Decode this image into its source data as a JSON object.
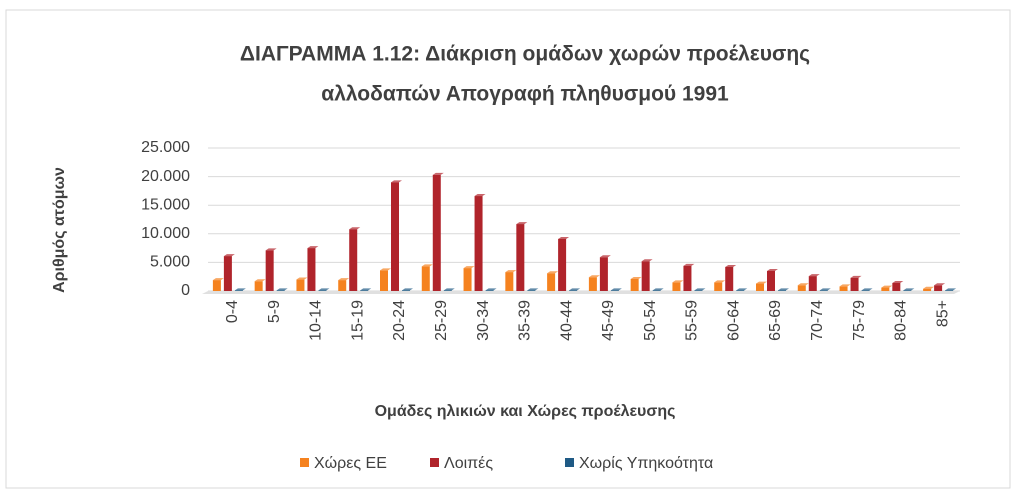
{
  "chart_data": {
    "type": "bar",
    "title": [
      "ΔΙΑΓΡΑΜΜΑ 1.12: Διάκριση ομάδων χωρών προέλευσης",
      "αλλοδαπών Απογραφή πληθυσμού 1991"
    ],
    "x_label": "Ομάδες ηλικιών και Χώρες προέλευσης",
    "y_label": "Αριθμός ατόμων",
    "categories": [
      "0-4",
      "5-9",
      "10-14",
      "15-19",
      "20-24",
      "25-29",
      "30-34",
      "35-39",
      "40-44",
      "45-49",
      "50-54",
      "55-59",
      "60-64",
      "65-69",
      "70-74",
      "75-79",
      "80-84",
      "85+"
    ],
    "series": [
      {
        "name": "Χώρες ΕΕ",
        "color": "#f5821f",
        "values": [
          1900,
          1700,
          2000,
          1900,
          3600,
          4300,
          4000,
          3300,
          3100,
          2400,
          2100,
          1500,
          1500,
          1300,
          1000,
          800,
          600,
          400
        ]
      },
      {
        "name": "Λοιπές",
        "color": "#b0242b",
        "values": [
          6100,
          7100,
          7500,
          10800,
          19000,
          20300,
          16600,
          11700,
          9100,
          5900,
          5200,
          4400,
          4200,
          3500,
          2600,
          2300,
          1400,
          1000
        ]
      },
      {
        "name": "Χωρίς Υπηκοότητα",
        "color": "#1f5a85",
        "values": [
          100,
          100,
          100,
          100,
          100,
          100,
          100,
          100,
          100,
          100,
          100,
          100,
          100,
          100,
          100,
          100,
          100,
          100
        ]
      }
    ],
    "ylim": [
      0,
      25000
    ],
    "yticks": [
      0,
      {
        "value": 5000,
        "label": "5.000"
      },
      {
        "value": 10000,
        "label": "10.000"
      },
      {
        "value": 15000,
        "label": "15.000"
      },
      {
        "value": 20000,
        "label": "20.000"
      },
      {
        "value": 25000,
        "label": "25.000"
      }
    ],
    "grid": true,
    "legend": "bottom"
  }
}
